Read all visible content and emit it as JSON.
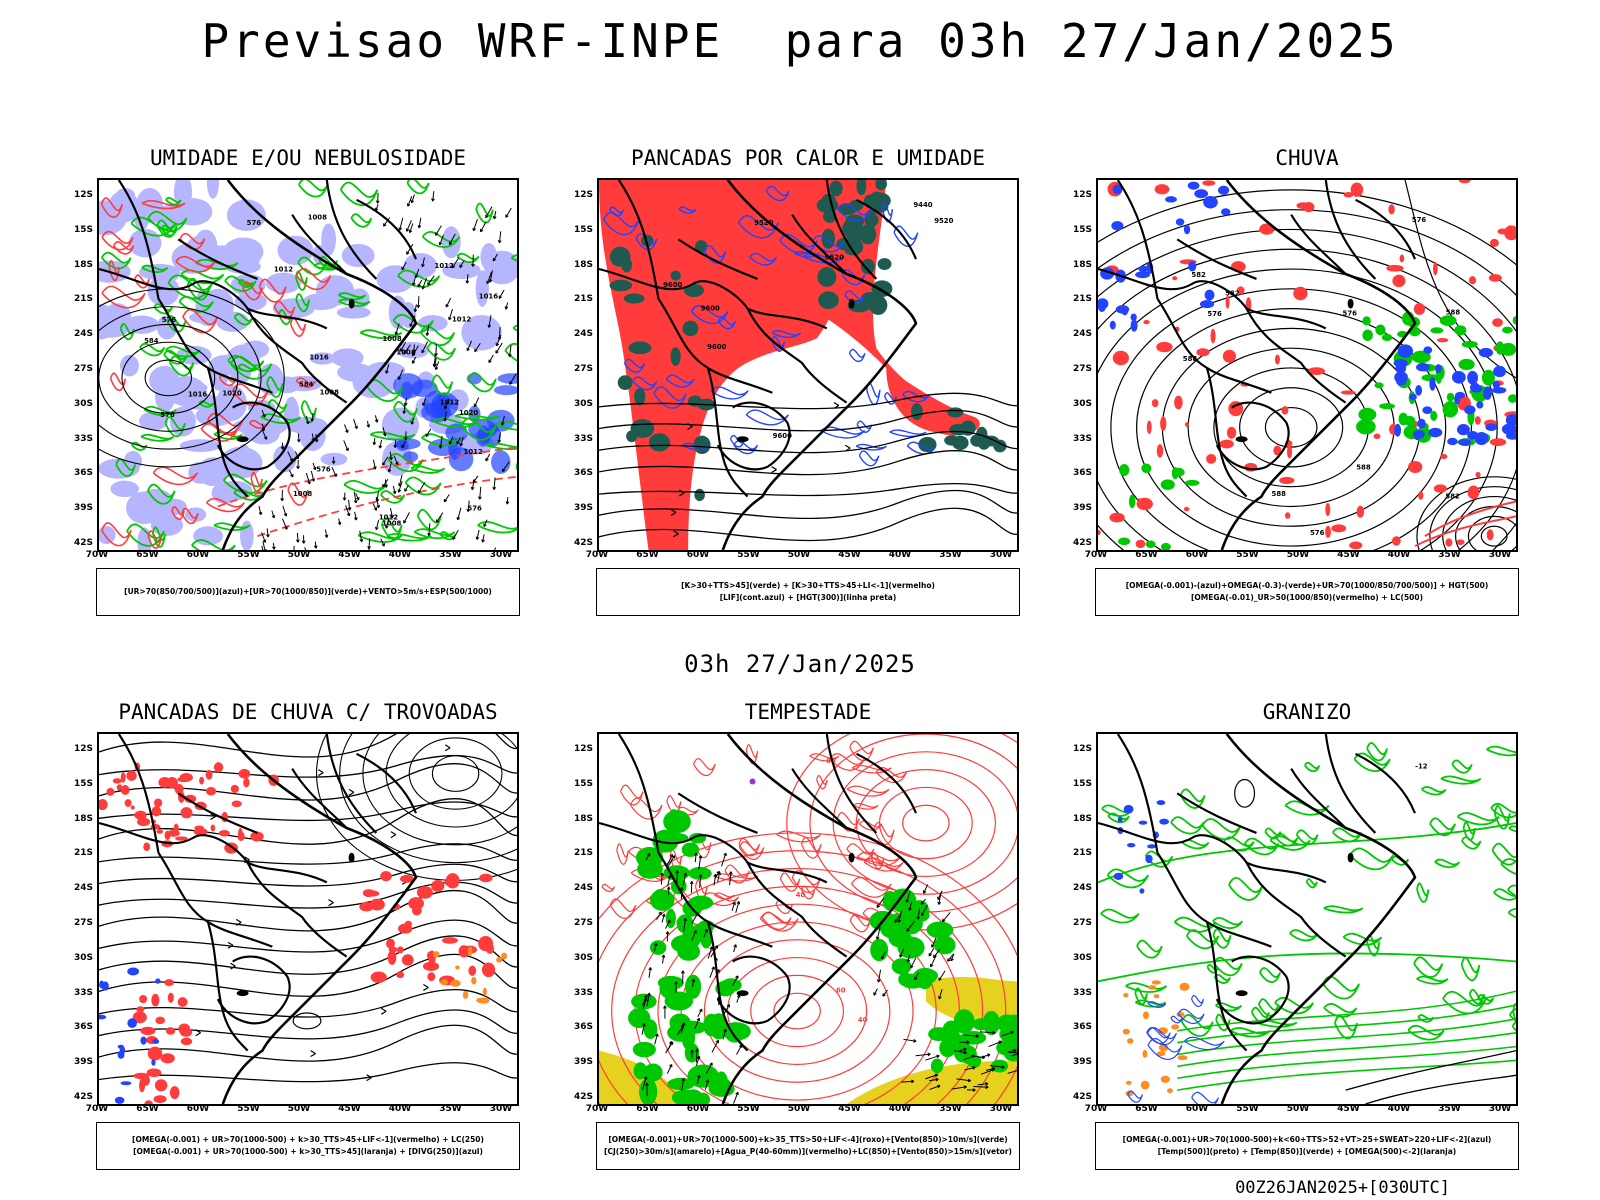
{
  "title": "Previsao WRF-INPE  para 03h 27/Jan/2025",
  "mid_title": "03h 27/Jan/2025",
  "footer": "00Z26JAN2025+[030UTC]",
  "lat_labels": [
    "12S",
    "15S",
    "18S",
    "21S",
    "24S",
    "27S",
    "30S",
    "33S",
    "36S",
    "39S",
    "42S"
  ],
  "lon_labels": [
    "70W",
    "65W",
    "60W",
    "55W",
    "50W",
    "45W",
    "40W",
    "35W",
    "30W"
  ],
  "colors": {
    "red": "#ff3b3b",
    "green": "#00c800",
    "blue": "#2244ff",
    "lavender": "#b6b6ff",
    "darkgreen": "#1e5a50",
    "yellow": "#e6d21e",
    "orange": "#ff8c1e"
  },
  "panels": [
    {
      "title": "UMIDADE E/OU NEBULOSIDADE",
      "legend": [
        "[UR>70(850/700/500)](azul)+[UR>70(1000/850)](verde)+VENTO>5m/s+ESP(500/1000)"
      ],
      "labels": [
        "1012",
        "1012",
        "1012",
        "1012",
        "1012",
        "1012",
        "1016",
        "1016",
        "1008",
        "1008",
        "1008",
        "1008",
        "1008",
        "1008",
        "576",
        "576",
        "576",
        "576",
        "576",
        "584",
        "584",
        "1016",
        "1020",
        "1020"
      ]
    },
    {
      "title": "PANCADAS POR CALOR E UMIDADE",
      "legend": [
        "[K>30+TTS>45](verde) + [K>30+TTS>45+LI<-1](vermelho)",
        "[LIF](cont.azul) + [HGT(300)](linha preta)"
      ],
      "labels": [
        "9600",
        "9600",
        "9600",
        "9600",
        "9520",
        "9520",
        "9520",
        "9440"
      ]
    },
    {
      "title": "CHUVA",
      "legend": [
        "[OMEGA(-0.001)-(azul)+OMEGA(-0.3)-(verde)+UR>70(1000/850/700/500)] + HGT(500)",
        "[OMEGA(-0.01)_UR>50(1000/850)(vermelho) + LC(500)"
      ],
      "labels": [
        "588",
        "588",
        "588",
        "588",
        "582",
        "582",
        "582",
        "576",
        "576",
        "576",
        "576"
      ]
    },
    {
      "title": "PANCADAS DE CHUVA C/ TROVOADAS",
      "legend": [
        "[OMEGA(-0.001) + UR>70(1000-500) + k>30_TTS>45+LIF<-1](vermelho) + LC(250)",
        "[OMEGA(-0.001) + UR>70(1000-500) + k>30_TTS>45](laranja) + [DIVG(250)](azul)"
      ],
      "labels": []
    },
    {
      "title": "TEMPESTADE",
      "legend": [
        "[OMEGA(-0.001)+UR>70(1000-500)+k>35_TTS>50+LIF<-4](roxo)+[Vento(850)>10m/s](verde)",
        "[CJ(250)>30m/s](amarelo)+[Agua_P(40-60mm)](vermelho)+LC(850)+[Vento(850)>15m/s](vetor)"
      ],
      "labels": [
        "60",
        "40",
        "40",
        "60"
      ]
    },
    {
      "title": "GRANIZO",
      "legend": [
        "[OMEGA(-0.001)+UR>70(1000-500)+k<60+TTS>52+VT>25+SWEAT>220+LIF<-2](azul)",
        "[Temp(500)](preto) + [Temp(850)](verde) + [OMEGA(500)<-2](laranja)"
      ],
      "labels": [
        "-12"
      ]
    }
  ]
}
